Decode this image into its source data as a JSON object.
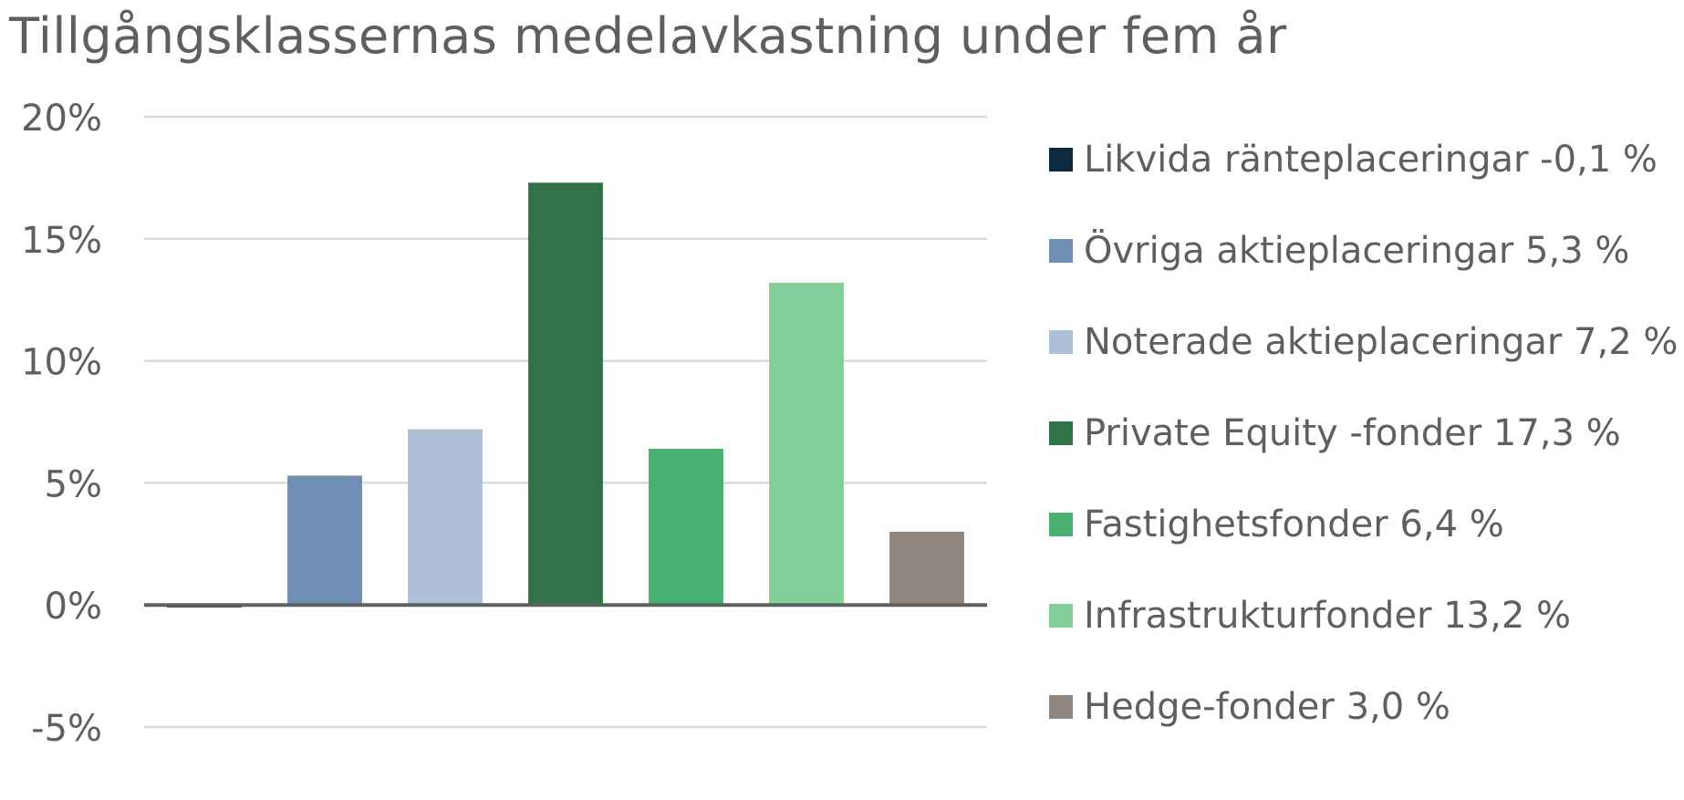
{
  "chart_data": {
    "type": "bar",
    "title": "Tillgångsklassernas medelavkastning under fem år",
    "xlabel": "",
    "ylabel": "",
    "ylim": [
      -5,
      20
    ],
    "y_ticks": [
      {
        "value": 20,
        "label": "20%"
      },
      {
        "value": 15,
        "label": "15%"
      },
      {
        "value": 10,
        "label": "10%"
      },
      {
        "value": 5,
        "label": "5%"
      },
      {
        "value": 0,
        "label": "0%"
      },
      {
        "value": -5,
        "label": "-5%"
      }
    ],
    "grid": true,
    "legend_position": "right",
    "categories": [
      "Likvida ränteplaceringar",
      "Övriga aktieplaceringar",
      "Noterade aktieplaceringar",
      "Private Equity -fonder",
      "Fastighetsfonder",
      "Infrastrukturfonder",
      "Hedge-fonder"
    ],
    "values": [
      -0.1,
      5.3,
      7.2,
      17.3,
      6.4,
      13.2,
      3.0
    ],
    "colors": [
      "#0d2a40",
      "#6e8fb3",
      "#adc0d7",
      "#317249",
      "#4ab072",
      "#82cf9a",
      "#8e8781"
    ],
    "legend": [
      {
        "label": "Likvida ränteplaceringar -0,1 %",
        "color": "#0d2a40"
      },
      {
        "label": "Övriga aktieplaceringar 5,3 %",
        "color": "#6e8fb3"
      },
      {
        "label": "Noterade aktieplaceringar 7,2 %",
        "color": "#adc0d7"
      },
      {
        "label": "Private Equity -fonder 17,3 %",
        "color": "#317249"
      },
      {
        "label": "Fastighetsfonder 6,4 %",
        "color": "#4ab072"
      },
      {
        "label": "Infrastrukturfonder 13,2 %",
        "color": "#82cf9a"
      },
      {
        "label": "Hedge-fonder 3,0 %",
        "color": "#8e8781"
      }
    ]
  }
}
